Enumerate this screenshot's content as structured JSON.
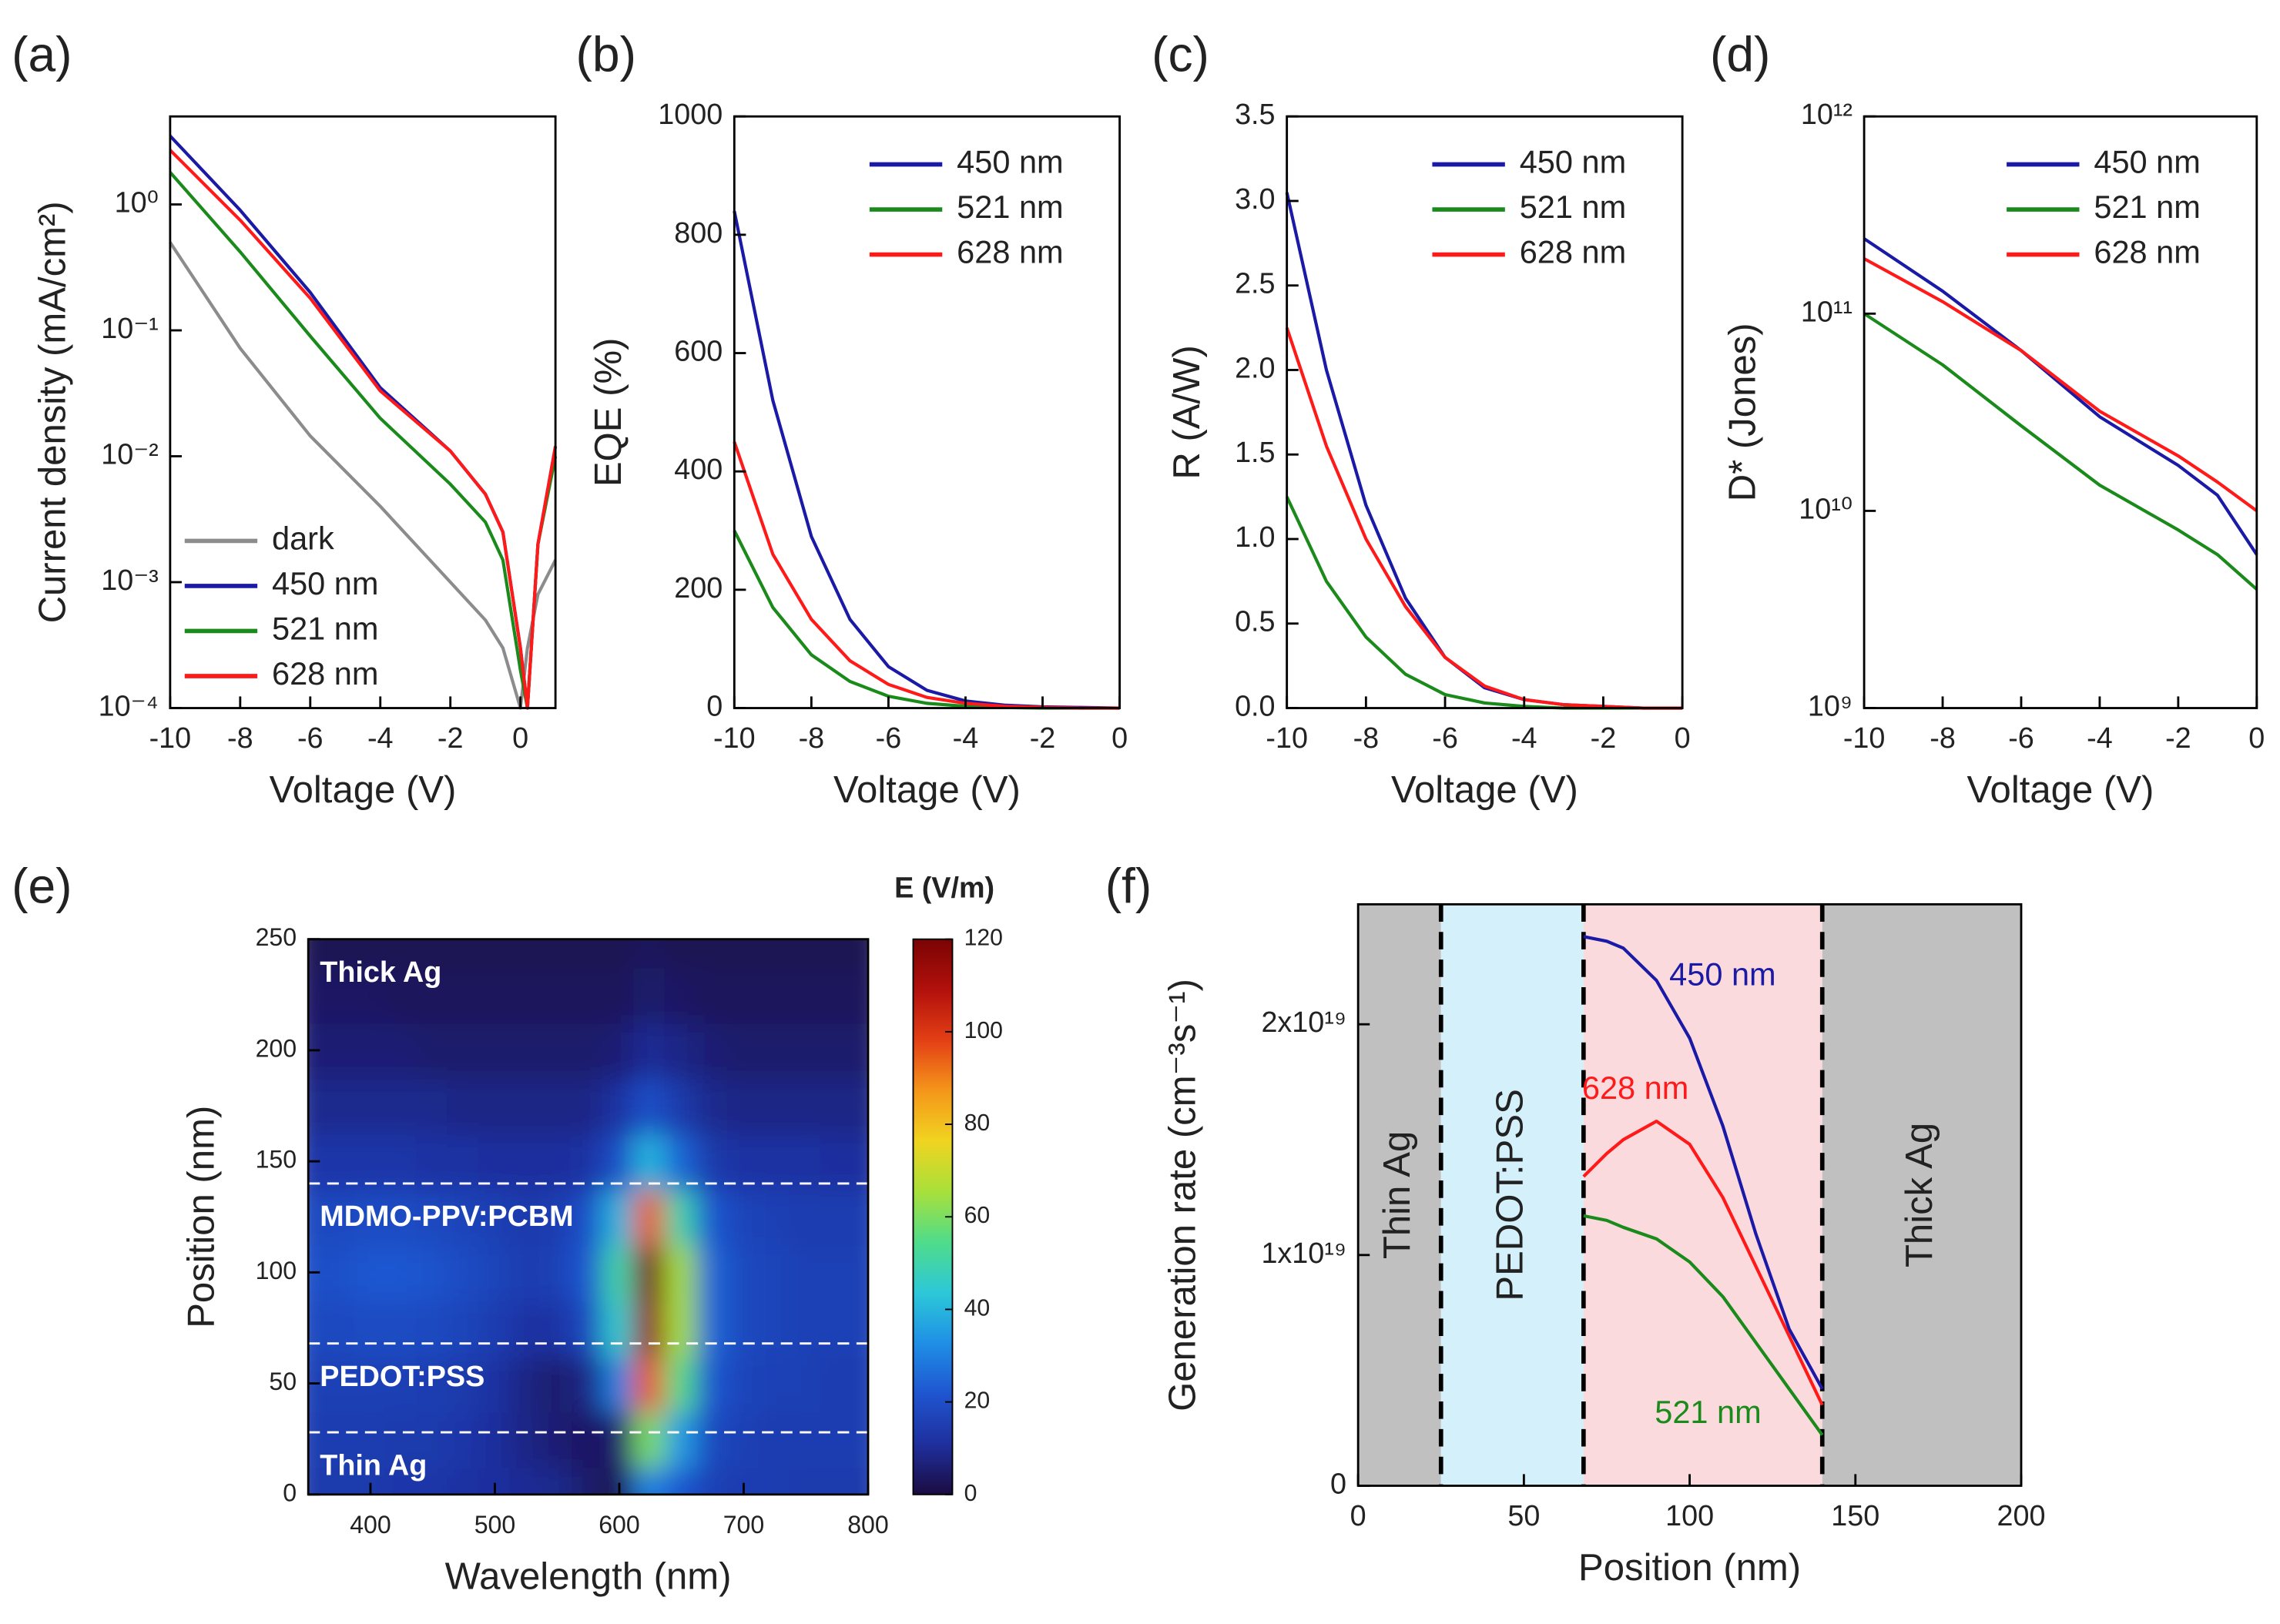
{
  "chart_data": [
    {
      "type": "line",
      "panel_label": "(a)",
      "xlabel": "Voltage (V)",
      "ylabel": "Current density (mA/cm²)",
      "ylog": true,
      "xlim": [
        -10,
        1
      ],
      "xticks": [
        -10,
        -8,
        -6,
        -4,
        -2,
        0
      ],
      "ylim": [
        0.0001,
        5
      ],
      "yticks": [
        {
          "value": 0.0001,
          "label": "10⁻⁴"
        },
        {
          "value": 0.001,
          "label": "10⁻³"
        },
        {
          "value": 0.01,
          "label": "10⁻²"
        },
        {
          "value": 0.1,
          "label": "10⁻¹"
        },
        {
          "value": 1,
          "label": "10⁰"
        }
      ],
      "legend": "lower left",
      "x": [
        -10,
        -8,
        -6,
        -4,
        -2,
        -1,
        -0.5,
        0,
        0.2,
        0.5,
        1
      ],
      "series": [
        {
          "name": "dark",
          "color": "#8c8c8c",
          "values": [
            0.5,
            0.072,
            0.0145,
            0.004,
            0.001,
            0.0005,
            0.0003,
            0.0001,
            0.0003,
            0.0008,
            0.0015
          ]
        },
        {
          "name": "450 nm",
          "color": "#1a1aa6",
          "values": [
            3.5,
            0.9,
            0.2,
            0.035,
            0.011,
            0.005,
            0.0025,
            0.0003,
            0.0001,
            0.002,
            0.012
          ]
        },
        {
          "name": "521 nm",
          "color": "#1a8a1a",
          "values": [
            1.8,
            0.42,
            0.09,
            0.02,
            0.006,
            0.003,
            0.0015,
            0.0002,
            0.0001,
            0.002,
            0.01
          ]
        },
        {
          "name": "628 nm",
          "color": "#ff1a1a",
          "values": [
            2.7,
            0.75,
            0.18,
            0.033,
            0.011,
            0.005,
            0.0025,
            0.0003,
            0.0001,
            0.002,
            0.012
          ]
        }
      ]
    },
    {
      "type": "line",
      "panel_label": "(b)",
      "xlabel": "Voltage (V)",
      "ylabel": "EQE (%)",
      "xlim": [
        -10,
        0
      ],
      "xticks": [
        -10,
        -8,
        -6,
        -4,
        -2,
        0
      ],
      "ylim": [
        0,
        1000
      ],
      "yticks": [
        0,
        200,
        400,
        600,
        800,
        1000
      ],
      "legend": "upper right",
      "x": [
        -10,
        -9,
        -8,
        -7,
        -6,
        -5,
        -4,
        -3,
        -2,
        -1,
        0
      ],
      "series": [
        {
          "name": "450 nm",
          "color": "#1a1aa6",
          "values": [
            840,
            520,
            290,
            150,
            70,
            30,
            12,
            5,
            2,
            1,
            0
          ]
        },
        {
          "name": "521 nm",
          "color": "#1a8a1a",
          "values": [
            300,
            170,
            90,
            45,
            20,
            8,
            3,
            1,
            0,
            0,
            0
          ]
        },
        {
          "name": "628 nm",
          "color": "#ff1a1a",
          "values": [
            450,
            260,
            150,
            80,
            40,
            18,
            8,
            3,
            1,
            0,
            0
          ]
        }
      ]
    },
    {
      "type": "line",
      "panel_label": "(c)",
      "xlabel": "Voltage (V)",
      "ylabel": "R (A/W)",
      "xlim": [
        -10,
        0
      ],
      "xticks": [
        -10,
        -8,
        -6,
        -4,
        -2,
        0
      ],
      "ylim": [
        0,
        3.5
      ],
      "yticks": [
        {
          "value": 0,
          "label": "0.0"
        },
        0.5,
        {
          "value": 1,
          "label": "1.0"
        },
        1.5,
        {
          "value": 2,
          "label": "2.0"
        },
        2.5,
        {
          "value": 3,
          "label": "3.0"
        },
        3.5
      ],
      "legend": "upper right",
      "x": [
        -10,
        -9,
        -8,
        -7,
        -6,
        -5,
        -4,
        -3,
        -2,
        -1,
        0
      ],
      "series": [
        {
          "name": "450 nm",
          "color": "#1a1aa6",
          "values": [
            3.05,
            2.0,
            1.2,
            0.65,
            0.3,
            0.12,
            0.05,
            0.02,
            0.01,
            0,
            0
          ]
        },
        {
          "name": "521 nm",
          "color": "#1a8a1a",
          "values": [
            1.25,
            0.75,
            0.42,
            0.2,
            0.08,
            0.03,
            0.01,
            0,
            0,
            0,
            0
          ]
        },
        {
          "name": "628 nm",
          "color": "#ff1a1a",
          "values": [
            2.25,
            1.55,
            1.0,
            0.6,
            0.3,
            0.13,
            0.05,
            0.02,
            0.01,
            0,
            0
          ]
        }
      ]
    },
    {
      "type": "line",
      "panel_label": "(d)",
      "xlabel": "Voltage (V)",
      "ylabel": "D* (Jones)",
      "ylog": true,
      "xlim": [
        -10,
        0
      ],
      "xticks": [
        -10,
        -8,
        -6,
        -4,
        -2,
        0
      ],
      "ylim": [
        1000000000,
        1000000000000
      ],
      "yticks": [
        {
          "value": 1000000000,
          "label": "10⁹"
        },
        {
          "value": 10000000000,
          "label": "10¹⁰"
        },
        {
          "value": 100000000000,
          "label": "10¹¹"
        },
        {
          "value": 1000000000000,
          "label": "10¹²"
        }
      ],
      "legend": "upper right",
      "x": [
        -10,
        -8,
        -6,
        -4,
        -2,
        -1,
        0
      ],
      "series": [
        {
          "name": "450 nm",
          "color": "#1a1aa6",
          "values": [
            240000000000,
            130000000000,
            65000000000,
            30000000000,
            17000000000,
            12000000000,
            6000000000
          ]
        },
        {
          "name": "521 nm",
          "color": "#1a8a1a",
          "values": [
            100000000000,
            55000000000,
            27000000000,
            13500000000,
            8000000000,
            6000000000,
            4000000000
          ]
        },
        {
          "name": "628 nm",
          "color": "#ff1a1a",
          "values": [
            190000000000,
            115000000000,
            65000000000,
            32000000000,
            19000000000,
            14000000000,
            10000000000
          ]
        }
      ]
    },
    {
      "type": "heatmap",
      "panel_label": "(e)",
      "xlabel": "Wavelength (nm)",
      "ylabel": "Position (nm)",
      "colorbar_label": "E (V/m)",
      "xlim": [
        350,
        800
      ],
      "xticks": [
        400,
        500,
        600,
        700,
        800
      ],
      "ylim": [
        0,
        250
      ],
      "yticks": [
        0,
        50,
        100,
        150,
        200,
        250
      ],
      "zlim": [
        0,
        120
      ],
      "zticks": [
        0,
        20,
        40,
        60,
        80,
        100,
        120
      ],
      "colorscale": [
        "#1b0c41",
        "#1f2f9e",
        "#1f55d0",
        "#1f8fe6",
        "#2cc8d8",
        "#4fdc8a",
        "#a8e03a",
        "#f0d420",
        "#f5961a",
        "#e33f16",
        "#b2100c",
        "#7a0403"
      ],
      "layer_boundaries": [
        28,
        68,
        140
      ],
      "layer_labels": [
        "Thick Ag",
        "MDMO-PPV:PCBM",
        "PEDOT:PSS",
        "Thin Ag"
      ],
      "x": [
        350,
        375,
        400,
        425,
        450,
        475,
        500,
        525,
        550,
        575,
        600,
        625,
        650,
        675,
        700,
        725,
        750,
        775,
        800
      ],
      "y": [
        0,
        25,
        50,
        75,
        100,
        125,
        150,
        175,
        200,
        225,
        250
      ],
      "z": [
        [
          14,
          14,
          14,
          13,
          13,
          12,
          11,
          10,
          9,
          5,
          2,
          30,
          22,
          16,
          15,
          15,
          14,
          14,
          14
        ],
        [
          15,
          15,
          15,
          14,
          14,
          13,
          11,
          8,
          6,
          4,
          5,
          60,
          35,
          18,
          16,
          15,
          15,
          15,
          15
        ],
        [
          16,
          16,
          16,
          16,
          15,
          14,
          12,
          8,
          5,
          8,
          30,
          95,
          55,
          22,
          17,
          16,
          16,
          15,
          15
        ],
        [
          18,
          18,
          19,
          19,
          18,
          17,
          15,
          12,
          12,
          18,
          45,
          115,
          65,
          25,
          18,
          17,
          16,
          16,
          16
        ],
        [
          20,
          20,
          22,
          22,
          21,
          19,
          17,
          15,
          16,
          22,
          50,
          120,
          65,
          25,
          18,
          17,
          16,
          16,
          16
        ],
        [
          18,
          18,
          19,
          19,
          18,
          17,
          16,
          14,
          15,
          20,
          40,
          95,
          50,
          22,
          17,
          16,
          15,
          15,
          15
        ],
        [
          13,
          13,
          13,
          13,
          12,
          12,
          11,
          11,
          11,
          12,
          20,
          40,
          25,
          14,
          12,
          12,
          12,
          11,
          11
        ],
        [
          9,
          9,
          9,
          9,
          9,
          8,
          8,
          8,
          8,
          8,
          12,
          20,
          14,
          9,
          8,
          8,
          8,
          8,
          8
        ],
        [
          6,
          6,
          6,
          6,
          5,
          5,
          5,
          5,
          5,
          5,
          6,
          10,
          8,
          6,
          5,
          5,
          5,
          5,
          5
        ],
        [
          4,
          4,
          4,
          3,
          3,
          3,
          3,
          3,
          3,
          3,
          3,
          5,
          4,
          3,
          3,
          3,
          3,
          3,
          3
        ],
        [
          2,
          2,
          2,
          2,
          2,
          2,
          2,
          2,
          2,
          2,
          2,
          3,
          2,
          2,
          2,
          2,
          2,
          2,
          2
        ]
      ]
    },
    {
      "type": "line",
      "panel_label": "(f)",
      "xlabel": "Position (nm)",
      "ylabel": "Generation rate (cm⁻³s⁻¹)",
      "xlim": [
        0,
        200
      ],
      "xticks": [
        0,
        50,
        100,
        150,
        200
      ],
      "ylim": [
        0,
        25200000000000000000
      ],
      "yticks": [
        0,
        {
          "value": 10000000000000000000,
          "label": "1x10¹⁹"
        },
        {
          "value": 20000000000000000000,
          "label": "2x10¹⁹"
        }
      ],
      "legend": "inline",
      "regions": [
        {
          "label": "Thin Ag",
          "range": [
            0,
            25
          ],
          "color": "#c0c0c0"
        },
        {
          "label": "PEDOT:PSS",
          "range": [
            25,
            68
          ],
          "color": "#d4f1fb"
        },
        {
          "range": [
            68,
            140
          ],
          "color": "#fadadd"
        },
        {
          "label": "Thick Ag",
          "range": [
            140,
            200
          ],
          "color": "#c0c0c0"
        }
      ],
      "x": [
        68,
        75,
        80,
        90,
        100,
        110,
        120,
        130,
        140
      ],
      "series": [
        {
          "name": "450 nm",
          "color": "#1a1aa6",
          "values": [
            23800000000000000000,
            23600000000000000000,
            23300000000000000000,
            21900000000000000000,
            19400000000000000000,
            15600000000000000000,
            10900000000000000000,
            6800000000000000000,
            4200000000000000000
          ]
        },
        {
          "name": "521 nm",
          "color": "#1a8a1a",
          "values": [
            11700000000000000000,
            11500000000000000000,
            11200000000000000000,
            10700000000000000000,
            9700000000000000000,
            8200000000000000000,
            6200000000000000000,
            4200000000000000000,
            2200000000000000000
          ]
        },
        {
          "name": "628 nm",
          "color": "#ff1a1a",
          "values": [
            13400000000000000000,
            14400000000000000000,
            15000000000000000000,
            15800000000000000000,
            14800000000000000000,
            12500000000000000000,
            9500000000000000000,
            6500000000000000000,
            3500000000000000000
          ]
        }
      ]
    }
  ]
}
